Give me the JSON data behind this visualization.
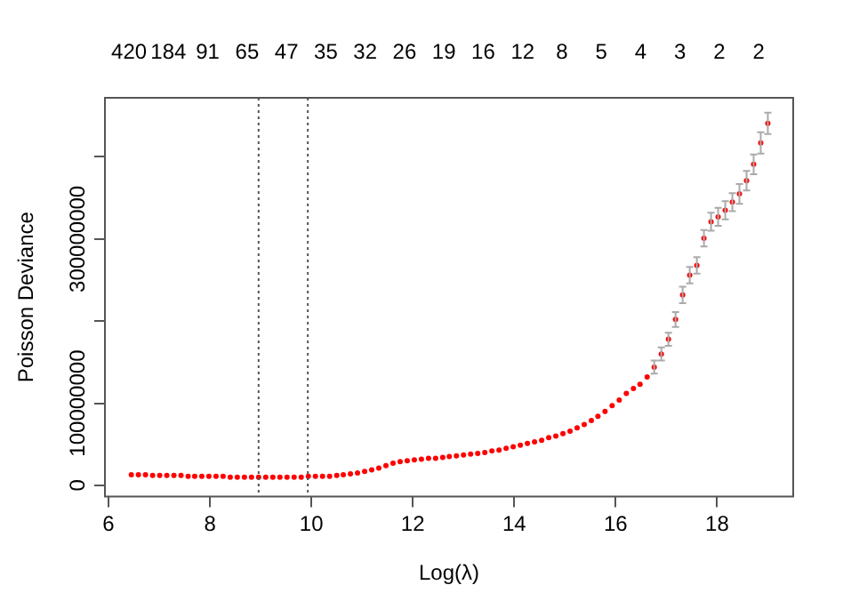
{
  "chart_data": {
    "type": "scatter",
    "xlabel": "Log(λ)",
    "ylabel": "Poisson Deviance",
    "xlim": [
      5.93,
      19.5
    ],
    "xticks": [
      6,
      8,
      10,
      12,
      14,
      16,
      18
    ],
    "ylim": [
      -13500000,
      472000000
    ],
    "yticks": [
      0,
      100000000,
      {
        "value": 200000000,
        "label": null
      },
      300000000,
      {
        "value": 400000000,
        "label": null
      }
    ],
    "annotations": [
      "420",
      "184",
      "91",
      "65",
      "47",
      "35",
      "32",
      "26",
      "19",
      "16",
      "12",
      "8",
      "5",
      "4",
      "3",
      "2",
      "2"
    ],
    "grid": false,
    "legend": false,
    "marker": "circle",
    "ref_lines": [
      {
        "axis": "x",
        "value": 8.96,
        "line_style": "dotted",
        "color": "#555555"
      },
      {
        "axis": "x",
        "value": 9.93,
        "line_style": "dotted",
        "color": "#555555"
      }
    ],
    "series": [
      {
        "color": "#ff0000",
        "x": [
          6.45,
          6.59,
          6.73,
          6.87,
          7.01,
          7.15,
          7.29,
          7.43,
          7.57,
          7.7,
          7.84,
          7.98,
          8.12,
          8.26,
          8.4,
          8.54,
          8.68,
          8.82,
          8.96,
          9.1,
          9.24,
          9.38,
          9.52,
          9.66,
          9.8,
          9.94,
          10.08,
          10.22,
          10.36,
          10.5,
          10.63,
          10.77,
          10.91,
          11.05,
          11.19,
          11.33,
          11.47,
          11.61,
          11.75,
          11.89,
          12.03,
          12.17,
          12.31,
          12.45,
          12.59,
          12.72,
          12.86,
          13.0,
          13.14,
          13.28,
          13.42,
          13.56,
          13.7,
          13.84,
          13.98,
          14.12,
          14.26,
          14.4,
          14.54,
          14.68,
          14.82,
          14.96,
          15.1,
          15.24,
          15.38,
          15.52,
          15.65,
          15.79,
          15.93,
          16.07,
          16.21,
          16.35,
          16.48,
          16.62,
          16.76,
          16.9,
          17.04,
          17.18,
          17.32,
          17.46,
          17.6,
          17.74,
          17.88,
          18.02,
          18.16,
          18.3,
          18.44,
          18.58,
          18.72,
          18.86,
          19.0
        ],
        "values": [
          13000000,
          13000000,
          13000000,
          12000000,
          12000000,
          12000000,
          12000000,
          12000000,
          11000000,
          11000000,
          11000000,
          11000000,
          11000000,
          11000000,
          10000000,
          10000000,
          10000000,
          10000000,
          10000000,
          10000000,
          10000000,
          10000000,
          10000000,
          10000000,
          10000000,
          11000000,
          11000000,
          11000000,
          11000000,
          12000000,
          13000000,
          14000000,
          15000000,
          17000000,
          19000000,
          21000000,
          24000000,
          27000000,
          29000000,
          30000000,
          31000000,
          32000000,
          33000000,
          33000000,
          34000000,
          35000000,
          36000000,
          37000000,
          38000000,
          39000000,
          40000000,
          42000000,
          43000000,
          45000000,
          47000000,
          49000000,
          51000000,
          53000000,
          55000000,
          58000000,
          60000000,
          63000000,
          66000000,
          70000000,
          74000000,
          79000000,
          84000000,
          90000000,
          97000000,
          104000000,
          112000000,
          118000000,
          123000000,
          132000000,
          144000000,
          160000000,
          178000000,
          202000000,
          232000000,
          256000000,
          268000000,
          301000000,
          321000000,
          327000000,
          335000000,
          345000000,
          355000000,
          371000000,
          391000000,
          417000000,
          441000000
        ],
        "errors": [
          null,
          null,
          null,
          null,
          null,
          null,
          null,
          null,
          null,
          null,
          null,
          null,
          null,
          null,
          null,
          null,
          null,
          null,
          null,
          null,
          null,
          null,
          null,
          null,
          null,
          null,
          null,
          null,
          null,
          null,
          null,
          null,
          null,
          null,
          null,
          null,
          null,
          null,
          null,
          null,
          null,
          null,
          null,
          null,
          null,
          null,
          null,
          null,
          null,
          null,
          null,
          null,
          null,
          null,
          null,
          null,
          null,
          null,
          null,
          null,
          null,
          null,
          null,
          null,
          null,
          null,
          null,
          null,
          null,
          null,
          null,
          null,
          null,
          null,
          8000000,
          8000000,
          8000000,
          9000000,
          10000000,
          10000000,
          10000000,
          10000000,
          11000000,
          11000000,
          11000000,
          11000000,
          12000000,
          12000000,
          12000000,
          13000000,
          13000000
        ]
      }
    ]
  }
}
